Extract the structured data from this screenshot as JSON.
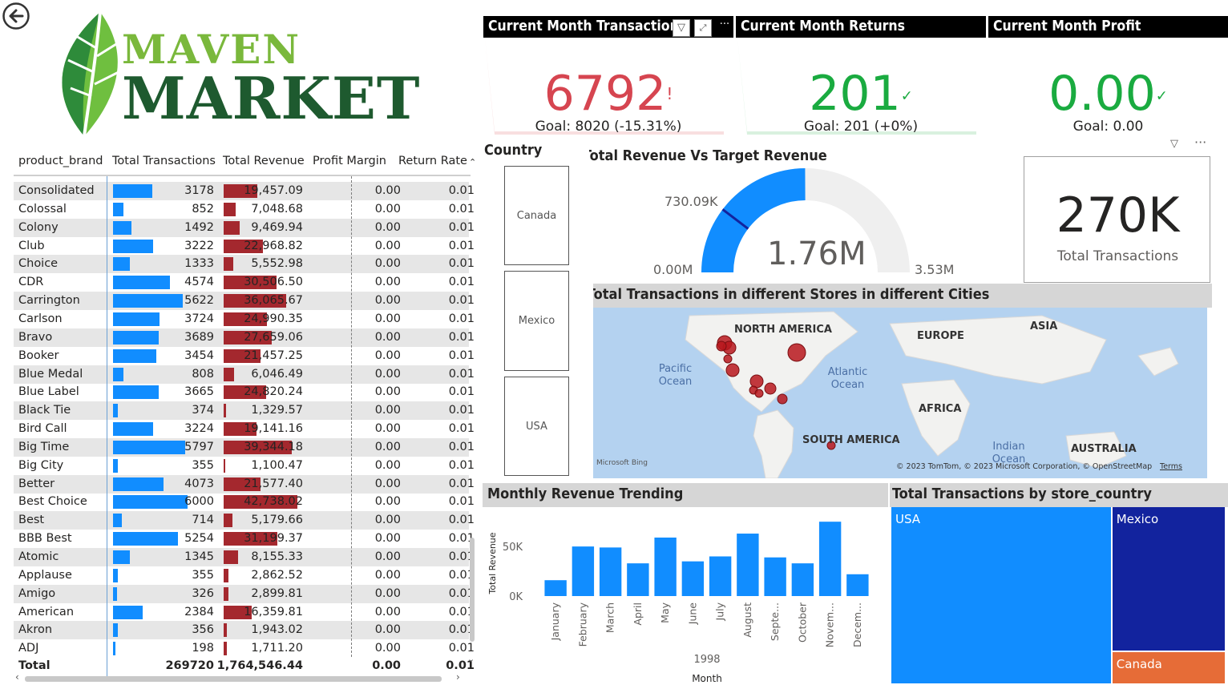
{
  "nav": {
    "back_icon": "back-arrow-icon"
  },
  "logo": {
    "line1": "MAVEN",
    "line2": "MARKET"
  },
  "table": {
    "headers": [
      "product_brand",
      "Total Transactions",
      "Total Revenue",
      "Profit Margin",
      "Return Rate"
    ],
    "rows": [
      {
        "brand": "Consolidated",
        "tx": "3178",
        "rev": "19,457.09",
        "pm": "0.00",
        "rr": "0.01",
        "txv": 3178,
        "revv": 19457.09
      },
      {
        "brand": "Colossal",
        "tx": "852",
        "rev": "7,048.68",
        "pm": "0.00",
        "rr": "0.01",
        "txv": 852,
        "revv": 7048.68
      },
      {
        "brand": "Colony",
        "tx": "1492",
        "rev": "9,469.94",
        "pm": "0.00",
        "rr": "0.01",
        "txv": 1492,
        "revv": 9469.94
      },
      {
        "brand": "Club",
        "tx": "3222",
        "rev": "22,968.82",
        "pm": "0.00",
        "rr": "0.01",
        "txv": 3222,
        "revv": 22968.82
      },
      {
        "brand": "Choice",
        "tx": "1333",
        "rev": "5,552.98",
        "pm": "0.00",
        "rr": "0.01",
        "txv": 1333,
        "revv": 5552.98
      },
      {
        "brand": "CDR",
        "tx": "4574",
        "rev": "30,506.50",
        "pm": "0.00",
        "rr": "0.01",
        "txv": 4574,
        "revv": 30506.5
      },
      {
        "brand": "Carrington",
        "tx": "5622",
        "rev": "36,065.67",
        "pm": "0.00",
        "rr": "0.01",
        "txv": 5622,
        "revv": 36065.67
      },
      {
        "brand": "Carlson",
        "tx": "3724",
        "rev": "24,990.35",
        "pm": "0.00",
        "rr": "0.01",
        "txv": 3724,
        "revv": 24990.35
      },
      {
        "brand": "Bravo",
        "tx": "3689",
        "rev": "27,659.06",
        "pm": "0.00",
        "rr": "0.01",
        "txv": 3689,
        "revv": 27659.06
      },
      {
        "brand": "Booker",
        "tx": "3454",
        "rev": "21,457.25",
        "pm": "0.00",
        "rr": "0.01",
        "txv": 3454,
        "revv": 21457.25
      },
      {
        "brand": "Blue Medal",
        "tx": "808",
        "rev": "6,046.49",
        "pm": "0.00",
        "rr": "0.01",
        "txv": 808,
        "revv": 6046.49
      },
      {
        "brand": "Blue Label",
        "tx": "3665",
        "rev": "24,820.24",
        "pm": "0.00",
        "rr": "0.01",
        "txv": 3665,
        "revv": 24820.24
      },
      {
        "brand": "Black Tie",
        "tx": "374",
        "rev": "1,329.57",
        "pm": "0.00",
        "rr": "0.01",
        "txv": 374,
        "revv": 1329.57
      },
      {
        "brand": "Bird Call",
        "tx": "3224",
        "rev": "19,141.16",
        "pm": "0.00",
        "rr": "0.01",
        "txv": 3224,
        "revv": 19141.16
      },
      {
        "brand": "Big Time",
        "tx": "5797",
        "rev": "39,344.18",
        "pm": "0.00",
        "rr": "0.01",
        "txv": 5797,
        "revv": 39344.18
      },
      {
        "brand": "Big City",
        "tx": "355",
        "rev": "1,100.47",
        "pm": "0.00",
        "rr": "0.01",
        "txv": 355,
        "revv": 1100.47
      },
      {
        "brand": "Better",
        "tx": "4073",
        "rev": "21,577.40",
        "pm": "0.00",
        "rr": "0.01",
        "txv": 4073,
        "revv": 21577.4
      },
      {
        "brand": "Best Choice",
        "tx": "6000",
        "rev": "42,738.02",
        "pm": "0.00",
        "rr": "0.01",
        "txv": 6000,
        "revv": 42738.02
      },
      {
        "brand": "Best",
        "tx": "714",
        "rev": "5,179.66",
        "pm": "0.00",
        "rr": "0.01",
        "txv": 714,
        "revv": 5179.66
      },
      {
        "brand": "BBB Best",
        "tx": "5254",
        "rev": "31,199.37",
        "pm": "0.00",
        "rr": "0.01",
        "txv": 5254,
        "revv": 31199.37
      },
      {
        "brand": "Atomic",
        "tx": "1345",
        "rev": "8,155.33",
        "pm": "0.00",
        "rr": "0.01",
        "txv": 1345,
        "revv": 8155.33
      },
      {
        "brand": "Applause",
        "tx": "355",
        "rev": "2,862.52",
        "pm": "0.00",
        "rr": "0.01",
        "txv": 355,
        "revv": 2862.52
      },
      {
        "brand": "Amigo",
        "tx": "326",
        "rev": "2,899.81",
        "pm": "0.00",
        "rr": "0.01",
        "txv": 326,
        "revv": 2899.81
      },
      {
        "brand": "American",
        "tx": "2384",
        "rev": "16,359.81",
        "pm": "0.00",
        "rr": "0.01",
        "txv": 2384,
        "revv": 16359.81
      },
      {
        "brand": "Akron",
        "tx": "356",
        "rev": "1,943.02",
        "pm": "0.00",
        "rr": "0.01",
        "txv": 356,
        "revv": 1943.02
      },
      {
        "brand": "ADJ",
        "tx": "198",
        "rev": "1,711.20",
        "pm": "0.00",
        "rr": "0.01",
        "txv": 198,
        "revv": 1711.2
      }
    ],
    "total": {
      "label": "Total",
      "tx": "269720",
      "rev": "1,764,546.44",
      "pm": "0.00",
      "rr": "0.01"
    }
  },
  "kpis": {
    "transactions": {
      "title": "Current Month Transactions",
      "value": "6792",
      "status": "!",
      "goal": "Goal: 8020 (-15.31%)",
      "color": "#d64550"
    },
    "returns": {
      "title": "Current Month Returns",
      "value": "201",
      "status": "✓",
      "goal": "Goal: 201 (+0%)",
      "color": "#1aab40"
    },
    "profit": {
      "title": "Current Month Profit",
      "value": "0.00",
      "status": "✓",
      "goal": "Goal: 0.00",
      "color": "#1aab40"
    }
  },
  "slicer": {
    "title": "Country",
    "options": [
      "Canada",
      "Mexico",
      "USA"
    ]
  },
  "gauge": {
    "title": "Total Revenue Vs Target Revenue",
    "value_label": "1.76M",
    "min_label": "0.00M",
    "max_label": "3.53M",
    "target_label": "730.09K",
    "value": 1.76,
    "min": 0,
    "max": 3.53,
    "target": 0.73
  },
  "card": {
    "value": "270K",
    "label": "Total Transactions"
  },
  "map": {
    "title": "Total Transactions in different Stores in different Cities",
    "labels": {
      "na": "NORTH AMERICA",
      "eu": "EUROPE",
      "asia": "ASIA",
      "africa": "AFRICA",
      "sa": "SOUTH AMERICA",
      "au": "AUSTRALIA",
      "pacific": "Pacific Ocean",
      "atlantic": "Atlantic Ocean",
      "indian": "Indian Ocean"
    },
    "attribution": "© 2023 TomTom, © 2023 Microsoft Corporation, © OpenStreetMap",
    "terms": "Terms",
    "bing": "Microsoft Bing"
  },
  "chart_data": [
    {
      "type": "bar",
      "title": "Monthly Revenue Trending",
      "categories": [
        "January",
        "February",
        "March",
        "April",
        "May",
        "June",
        "July",
        "August",
        "Septe...",
        "October",
        "Novem...",
        "Decem..."
      ],
      "values": [
        16000,
        50000,
        49000,
        33000,
        59000,
        35000,
        40000,
        63000,
        39000,
        33000,
        75000,
        22000
      ],
      "xlabel": "Month",
      "x_group": "1998",
      "ylabel": "Total Revenue",
      "yticks": [
        "0K",
        "50K"
      ],
      "ylim": [
        0,
        80000
      ],
      "color": "#118dff"
    },
    {
      "type": "treemap",
      "title": "Total Transactions by store_country",
      "categories": [
        "USA",
        "Mexico",
        "Canada"
      ],
      "values": [
        179000,
        75000,
        16000
      ],
      "colors": [
        "#118dff",
        "#12239e",
        "#e66c37"
      ]
    }
  ]
}
